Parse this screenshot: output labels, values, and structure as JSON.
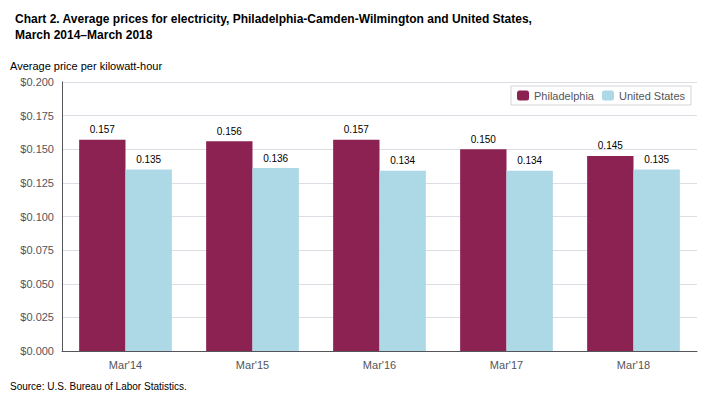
{
  "chart_data": {
    "type": "bar",
    "title": "Chart 2. Average prices for electricity, Philadelphia-Camden-Wilmington and United States,\nMarch 2014–March 2018",
    "ylabel": "Average price per kilowatt-hour",
    "annotations": [
      "Source: U.S. Bureau of Labor Statistics."
    ],
    "categories": [
      "Mar'14",
      "Mar'15",
      "Mar'16",
      "Mar'17",
      "Mar'18"
    ],
    "series": [
      {
        "name": "Philadelphia",
        "color": "#8B2252",
        "values": [
          0.157,
          0.156,
          0.157,
          0.15,
          0.145
        ],
        "value_labels": [
          "0.157",
          "0.156",
          "0.157",
          "0.150",
          "0.145"
        ]
      },
      {
        "name": "United States",
        "color": "#ADD8E6",
        "values": [
          0.135,
          0.136,
          0.134,
          0.134,
          0.135
        ],
        "value_labels": [
          "0.135",
          "0.136",
          "0.134",
          "0.134",
          "0.135"
        ]
      }
    ],
    "ylim": [
      0,
      0.2
    ],
    "yticks": [
      {
        "value": 0.0,
        "label": "$0.000"
      },
      {
        "value": 0.025,
        "label": "$0.025"
      },
      {
        "value": 0.05,
        "label": "$0.050"
      },
      {
        "value": 0.075,
        "label": "$0.075"
      },
      {
        "value": 0.1,
        "label": "$0.100"
      },
      {
        "value": 0.125,
        "label": "$0.125"
      },
      {
        "value": 0.15,
        "label": "$0.150"
      },
      {
        "value": 0.175,
        "label": "$0.175"
      },
      {
        "value": 0.2,
        "label": "$0.200"
      }
    ],
    "grid": true,
    "legend": "upper right",
    "data_labels": true
  }
}
